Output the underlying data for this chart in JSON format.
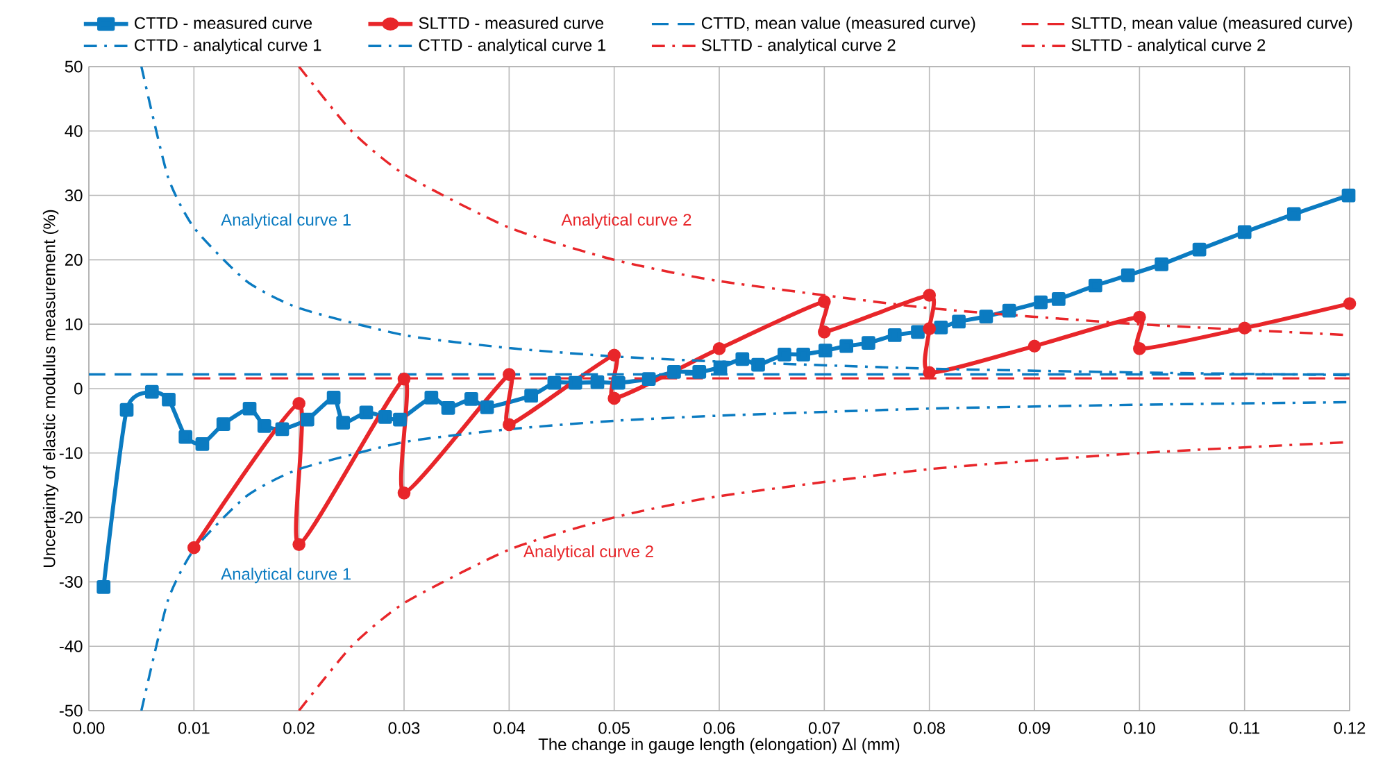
{
  "chart_data": {
    "type": "line",
    "xlabel": "The change in gauge length (elongation) Δl (mm)",
    "ylabel": "Uncertainty of elastic modulus measurement (%)",
    "xlim": [
      0,
      0.12
    ],
    "ylim": [
      -50,
      50
    ],
    "xticks": [
      {
        "value": 0,
        "label": "0.00"
      },
      {
        "value": 0.01,
        "label": "0.01"
      },
      {
        "value": 0.02,
        "label": "0.02"
      },
      {
        "value": 0.03,
        "label": "0.03"
      },
      {
        "value": 0.04,
        "label": "0.04"
      },
      {
        "value": 0.05,
        "label": "0.05"
      },
      {
        "value": 0.06,
        "label": "0.06"
      },
      {
        "value": 0.07,
        "label": "0.07"
      },
      {
        "value": 0.08,
        "label": "0.08"
      },
      {
        "value": 0.09,
        "label": "0.09"
      },
      {
        "value": 0.1,
        "label": "0.10"
      },
      {
        "value": 0.11,
        "label": "0.11"
      },
      {
        "value": 0.12,
        "label": "0.12"
      }
    ],
    "yticks": [
      -50,
      -40,
      -30,
      -20,
      -10,
      0,
      10,
      20,
      30,
      40,
      50
    ],
    "grid": true,
    "legend": "top",
    "series": [
      {
        "name": "CTTD  - measured curve",
        "color": "#0b7bc1",
        "marker": "square",
        "line_style": "solid",
        "x": [
          0.0014,
          0.0036,
          0.006,
          0.0076,
          0.0092,
          0.0108,
          0.0128,
          0.0153,
          0.0167,
          0.0184,
          0.0208,
          0.0233,
          0.0242,
          0.0264,
          0.0282,
          0.0296,
          0.0326,
          0.0342,
          0.0364,
          0.0379,
          0.0421,
          0.0443,
          0.0463,
          0.0484,
          0.0504,
          0.0533,
          0.0557,
          0.0581,
          0.0601,
          0.0622,
          0.0637,
          0.0662,
          0.068,
          0.0701,
          0.0721,
          0.0742,
          0.0767,
          0.0789,
          0.0811,
          0.0828,
          0.0854,
          0.0876,
          0.0906,
          0.0923,
          0.0958,
          0.0989,
          0.1021,
          0.1057,
          0.11,
          0.1147,
          0.1199
        ],
        "values": [
          -30.8,
          -3.3,
          -0.5,
          -1.7,
          -7.5,
          -8.6,
          -5.5,
          -3.1,
          -5.8,
          -6.3,
          -4.8,
          -1.4,
          -5.3,
          -3.7,
          -4.4,
          -4.8,
          -1.4,
          -3.0,
          -1.6,
          -2.9,
          -1.1,
          0.9,
          0.9,
          1.0,
          0.9,
          1.5,
          2.6,
          2.6,
          3.3,
          4.6,
          3.7,
          5.3,
          5.3,
          5.9,
          6.6,
          7.1,
          8.3,
          8.8,
          9.5,
          10.4,
          11.2,
          12.1,
          13.4,
          13.9,
          16.0,
          17.6,
          19.3,
          21.6,
          24.3,
          27.1,
          30.0
        ]
      },
      {
        "name": "SLTTD - measured curve",
        "color": "#e8262a",
        "marker": "circle",
        "line_style": "solid",
        "x": [
          0.01,
          0.02,
          0.02,
          0.03,
          0.03,
          0.04,
          0.04,
          0.05,
          0.05,
          0.06,
          0.07,
          0.07,
          0.08,
          0.08,
          0.08,
          0.09,
          0.1,
          0.1,
          0.11,
          0.12
        ],
        "values": [
          -24.7,
          -2.3,
          -24.2,
          1.5,
          -16.2,
          2.2,
          -5.6,
          5.2,
          -1.5,
          6.2,
          13.5,
          8.8,
          14.5,
          9.3,
          2.5,
          6.6,
          11.1,
          6.2,
          9.4,
          13.2
        ]
      },
      {
        "name": "CTTD, mean value (measured curve)",
        "color": "#0b7bc1",
        "marker": "none",
        "line_style": "dashed",
        "x": [
          0,
          0.12
        ],
        "values": [
          2.2,
          2.2
        ]
      },
      {
        "name": "SLTTD, mean value (measured curve)",
        "color": "#e8262a",
        "marker": "none",
        "line_style": "dashed",
        "x": [
          0.01,
          0.12
        ],
        "values": [
          1.6,
          1.6
        ]
      },
      {
        "name": "CTTD - analytical curve 1",
        "color": "#0b7bc1",
        "marker": "none",
        "line_style": "dashdot",
        "x": [
          0.005,
          0.0075,
          0.01,
          0.015,
          0.02,
          0.03,
          0.04,
          0.05,
          0.06,
          0.08,
          0.1,
          0.12
        ],
        "values": [
          50,
          33,
          25,
          16.7,
          12.5,
          8.3,
          6.3,
          5.0,
          4.2,
          3.1,
          2.5,
          2.1
        ]
      },
      {
        "name": "CTTD - analytical curve 1",
        "color": "#0b7bc1",
        "marker": "none",
        "line_style": "dashdot",
        "x": [
          0.005,
          0.0075,
          0.01,
          0.015,
          0.02,
          0.03,
          0.04,
          0.05,
          0.06,
          0.08,
          0.1,
          0.12
        ],
        "values": [
          -50,
          -33,
          -25,
          -16.7,
          -12.5,
          -8.3,
          -6.3,
          -5.0,
          -4.2,
          -3.1,
          -2.5,
          -2.1
        ]
      },
      {
        "name": "SLTTD - analytical curve 2",
        "color": "#e8262a",
        "marker": "none",
        "line_style": "dashdot",
        "x": [
          0.02,
          0.025,
          0.03,
          0.04,
          0.05,
          0.06,
          0.08,
          0.1,
          0.12
        ],
        "values": [
          50,
          40,
          33.3,
          25,
          20,
          16.7,
          12.5,
          10,
          8.3
        ]
      },
      {
        "name": "SLTTD - analytical curve 2",
        "color": "#e8262a",
        "marker": "none",
        "line_style": "dashdot",
        "x": [
          0.02,
          0.025,
          0.03,
          0.04,
          0.05,
          0.06,
          0.08,
          0.1,
          0.12
        ],
        "values": [
          -50,
          -40,
          -33.3,
          -25,
          -20,
          -16.7,
          -12.5,
          -10,
          -8.3
        ]
      }
    ],
    "annotations": [
      "Analytical curve 1",
      "Analytical curve 2",
      "Analytical curve 1",
      "Analytical curve 2"
    ]
  }
}
